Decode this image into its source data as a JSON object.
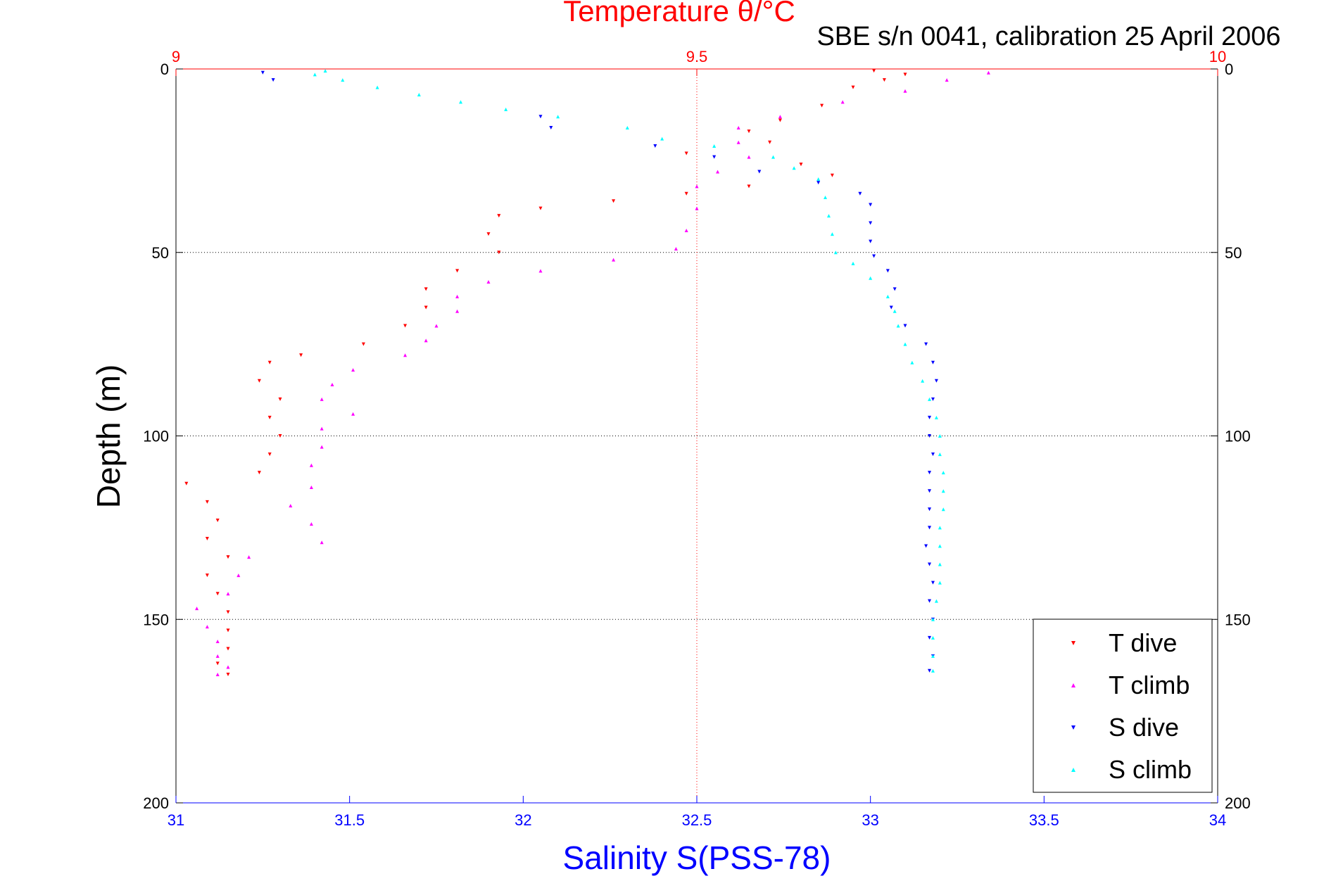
{
  "chart_data": {
    "type": "scatter",
    "title": "Temperature θ/°C",
    "subtitle": "SBE s/n 0041, calibration 25 April 2006",
    "ylabel": "Depth (m)",
    "xlabel": "Salinity S(PSS-78)",
    "top_axis": {
      "label": "Temperature θ/°C",
      "range": [
        9,
        10
      ],
      "ticks": [
        "9",
        "9.5",
        "10"
      ],
      "ticks_values": [
        9,
        9.5,
        10
      ],
      "color": "#ff0000"
    },
    "bottom_axis": {
      "label": "Salinity S(PSS-78)",
      "range": [
        31,
        34
      ],
      "ticks": [
        "31",
        "31.5",
        "32",
        "32.5",
        "33",
        "33.5",
        "34"
      ],
      "ticks_values": [
        31,
        31.5,
        32,
        32.5,
        33,
        33.5,
        34
      ],
      "color": "#0000ff"
    },
    "y_axis": {
      "range": [
        0,
        200
      ],
      "reversed": true,
      "ticks": [
        "0",
        "50",
        "100",
        "150",
        "200"
      ],
      "ticks_values": [
        0,
        50,
        100,
        150,
        200
      ]
    },
    "grid": true,
    "legend_position": "bottom-right",
    "series": [
      {
        "name": "T dive",
        "color": "#ff0000",
        "marker": "triangle-down",
        "axis": "temperature",
        "points": [
          [
            9.67,
            0.5
          ],
          [
            9.7,
            1.5
          ],
          [
            9.68,
            3
          ],
          [
            9.65,
            5
          ],
          [
            9.62,
            10
          ],
          [
            9.58,
            14
          ],
          [
            9.55,
            17
          ],
          [
            9.57,
            20
          ],
          [
            9.49,
            23
          ],
          [
            9.6,
            26
          ],
          [
            9.63,
            29
          ],
          [
            9.55,
            32
          ],
          [
            9.49,
            34
          ],
          [
            9.42,
            36
          ],
          [
            9.35,
            38
          ],
          [
            9.31,
            40
          ],
          [
            9.3,
            45
          ],
          [
            9.31,
            50
          ],
          [
            9.27,
            55
          ],
          [
            9.24,
            60
          ],
          [
            9.24,
            65
          ],
          [
            9.22,
            70
          ],
          [
            9.18,
            75
          ],
          [
            9.12,
            78
          ],
          [
            9.09,
            80
          ],
          [
            9.08,
            85
          ],
          [
            9.1,
            90
          ],
          [
            9.09,
            95
          ],
          [
            9.1,
            100
          ],
          [
            9.09,
            105
          ],
          [
            9.08,
            110
          ],
          [
            9.01,
            113
          ],
          [
            9.03,
            118
          ],
          [
            9.04,
            123
          ],
          [
            9.03,
            128
          ],
          [
            9.05,
            133
          ],
          [
            9.03,
            138
          ],
          [
            9.04,
            143
          ],
          [
            9.05,
            148
          ],
          [
            9.05,
            153
          ],
          [
            9.05,
            158
          ],
          [
            9.04,
            162
          ],
          [
            9.05,
            165
          ]
        ]
      },
      {
        "name": "T climb",
        "color": "#ff00ff",
        "marker": "triangle-up",
        "axis": "temperature",
        "points": [
          [
            9.78,
            1
          ],
          [
            9.74,
            3
          ],
          [
            9.7,
            6
          ],
          [
            9.64,
            9
          ],
          [
            9.58,
            13
          ],
          [
            9.54,
            16
          ],
          [
            9.54,
            20
          ],
          [
            9.55,
            24
          ],
          [
            9.52,
            28
          ],
          [
            9.5,
            32
          ],
          [
            9.5,
            38
          ],
          [
            9.49,
            44
          ],
          [
            9.48,
            49
          ],
          [
            9.42,
            52
          ],
          [
            9.35,
            55
          ],
          [
            9.3,
            58
          ],
          [
            9.27,
            62
          ],
          [
            9.27,
            66
          ],
          [
            9.25,
            70
          ],
          [
            9.24,
            74
          ],
          [
            9.22,
            78
          ],
          [
            9.17,
            82
          ],
          [
            9.15,
            86
          ],
          [
            9.14,
            90
          ],
          [
            9.17,
            94
          ],
          [
            9.14,
            98
          ],
          [
            9.14,
            103
          ],
          [
            9.13,
            108
          ],
          [
            9.13,
            114
          ],
          [
            9.11,
            119
          ],
          [
            9.13,
            124
          ],
          [
            9.14,
            129
          ],
          [
            9.07,
            133
          ],
          [
            9.06,
            138
          ],
          [
            9.05,
            143
          ],
          [
            9.02,
            147
          ],
          [
            9.03,
            152
          ],
          [
            9.04,
            156
          ],
          [
            9.04,
            160
          ],
          [
            9.05,
            163
          ],
          [
            9.04,
            165
          ]
        ]
      },
      {
        "name": "S dive",
        "color": "#0000ff",
        "marker": "triangle-down",
        "axis": "salinity",
        "points": [
          [
            31.25,
            1
          ],
          [
            31.28,
            3
          ],
          [
            32.05,
            13
          ],
          [
            32.08,
            16
          ],
          [
            32.38,
            21
          ],
          [
            32.55,
            24
          ],
          [
            32.68,
            28
          ],
          [
            32.85,
            31
          ],
          [
            32.97,
            34
          ],
          [
            33.0,
            37
          ],
          [
            33.0,
            42
          ],
          [
            33.0,
            47
          ],
          [
            33.01,
            51
          ],
          [
            33.05,
            55
          ],
          [
            33.07,
            60
          ],
          [
            33.06,
            65
          ],
          [
            33.1,
            70
          ],
          [
            33.16,
            75
          ],
          [
            33.18,
            80
          ],
          [
            33.19,
            85
          ],
          [
            33.18,
            90
          ],
          [
            33.17,
            95
          ],
          [
            33.17,
            100
          ],
          [
            33.18,
            105
          ],
          [
            33.17,
            110
          ],
          [
            33.17,
            115
          ],
          [
            33.17,
            120
          ],
          [
            33.17,
            125
          ],
          [
            33.16,
            130
          ],
          [
            33.17,
            135
          ],
          [
            33.18,
            140
          ],
          [
            33.17,
            145
          ],
          [
            33.18,
            150
          ],
          [
            33.17,
            155
          ],
          [
            33.18,
            160
          ],
          [
            33.17,
            164
          ]
        ]
      },
      {
        "name": "S climb",
        "color": "#00ffff",
        "marker": "triangle-up",
        "axis": "salinity",
        "points": [
          [
            31.43,
            0.5
          ],
          [
            31.4,
            1.5
          ],
          [
            31.48,
            3
          ],
          [
            31.58,
            5
          ],
          [
            31.7,
            7
          ],
          [
            31.82,
            9
          ],
          [
            31.95,
            11
          ],
          [
            32.1,
            13
          ],
          [
            32.3,
            16
          ],
          [
            32.4,
            19
          ],
          [
            32.55,
            21
          ],
          [
            32.72,
            24
          ],
          [
            32.78,
            27
          ],
          [
            32.85,
            30
          ],
          [
            32.87,
            35
          ],
          [
            32.88,
            40
          ],
          [
            32.89,
            45
          ],
          [
            32.9,
            50
          ],
          [
            32.95,
            53
          ],
          [
            33.0,
            57
          ],
          [
            33.05,
            62
          ],
          [
            33.07,
            66
          ],
          [
            33.08,
            70
          ],
          [
            33.1,
            75
          ],
          [
            33.12,
            80
          ],
          [
            33.15,
            85
          ],
          [
            33.17,
            90
          ],
          [
            33.19,
            95
          ],
          [
            33.2,
            100
          ],
          [
            33.2,
            105
          ],
          [
            33.21,
            110
          ],
          [
            33.21,
            115
          ],
          [
            33.21,
            120
          ],
          [
            33.2,
            125
          ],
          [
            33.2,
            130
          ],
          [
            33.2,
            135
          ],
          [
            33.2,
            140
          ],
          [
            33.19,
            145
          ],
          [
            33.18,
            150
          ],
          [
            33.18,
            155
          ],
          [
            33.18,
            160
          ],
          [
            33.18,
            164
          ]
        ]
      }
    ]
  }
}
